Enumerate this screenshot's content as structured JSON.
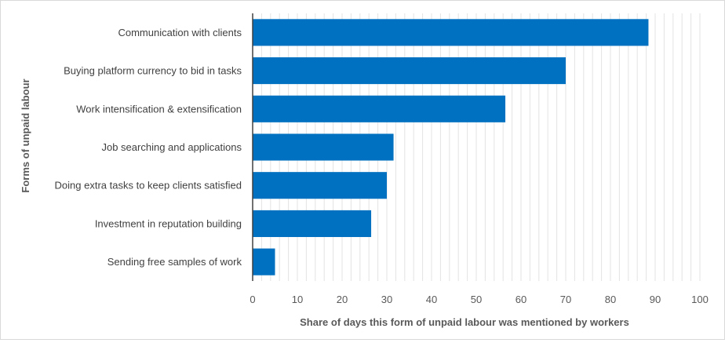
{
  "chart_data": {
    "type": "bar",
    "orientation": "horizontal",
    "categories": [
      "Communication with clients",
      "Buying platform currency to bid in tasks",
      "Work intensification & extensification",
      "Job searching and applications",
      "Doing extra tasks to keep clients satisfied",
      "Investment in reputation building",
      "Sending free samples of work"
    ],
    "values": [
      88.5,
      70,
      56.5,
      31.5,
      30,
      26.5,
      5
    ],
    "title": "",
    "xlabel": "Share of days this form of unpaid labour was mentioned by workers",
    "ylabel": "Forms  of unpaid labour",
    "xlim": [
      0,
      100
    ],
    "xticks": [
      "0",
      "10",
      "20",
      "30",
      "40",
      "50",
      "60",
      "70",
      "80",
      "90",
      "100"
    ],
    "grid": "vertical minor gridlines every 2 units",
    "legend": "none",
    "bar_color": "#0070c0"
  }
}
